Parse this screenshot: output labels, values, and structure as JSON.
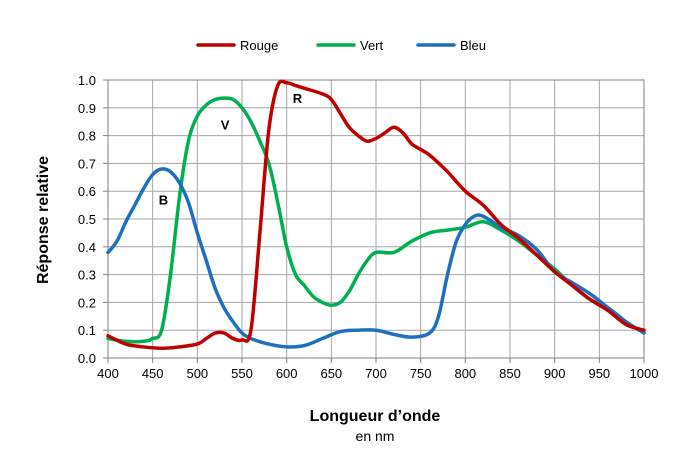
{
  "chart_data": {
    "type": "line",
    "xlabel": "Longueur d’onde",
    "xlabel_sub": "en nm",
    "ylabel": "Réponse relative",
    "xlim": [
      400,
      1000
    ],
    "ylim": [
      0,
      1
    ],
    "x_ticks": [
      "400",
      "450",
      "500",
      "550",
      "600",
      "650",
      "700",
      "750",
      "800",
      "850",
      "900",
      "950",
      "1000"
    ],
    "y_ticks": [
      "0.0",
      "0.1",
      "0.2",
      "0.3",
      "0.4",
      "0.5",
      "0.6",
      "0.7",
      "0.8",
      "0.9",
      "1.0"
    ],
    "grid": true,
    "legend_position": "top-center",
    "series": [
      {
        "name": "Rouge",
        "color": "#c00000",
        "points": [
          [
            400,
            0.08
          ],
          [
            420,
            0.05
          ],
          [
            440,
            0.04
          ],
          [
            460,
            0.035
          ],
          [
            480,
            0.04
          ],
          [
            500,
            0.05
          ],
          [
            510,
            0.07
          ],
          [
            520,
            0.09
          ],
          [
            530,
            0.09
          ],
          [
            540,
            0.07
          ],
          [
            550,
            0.065
          ],
          [
            560,
            0.1
          ],
          [
            570,
            0.45
          ],
          [
            580,
            0.82
          ],
          [
            590,
            0.98
          ],
          [
            600,
            0.99
          ],
          [
            610,
            0.98
          ],
          [
            620,
            0.97
          ],
          [
            640,
            0.95
          ],
          [
            650,
            0.93
          ],
          [
            660,
            0.88
          ],
          [
            670,
            0.83
          ],
          [
            680,
            0.8
          ],
          [
            690,
            0.78
          ],
          [
            700,
            0.79
          ],
          [
            710,
            0.81
          ],
          [
            720,
            0.83
          ],
          [
            730,
            0.81
          ],
          [
            740,
            0.77
          ],
          [
            750,
            0.75
          ],
          [
            760,
            0.73
          ],
          [
            780,
            0.67
          ],
          [
            800,
            0.6
          ],
          [
            820,
            0.55
          ],
          [
            840,
            0.48
          ],
          [
            860,
            0.43
          ],
          [
            880,
            0.37
          ],
          [
            900,
            0.31
          ],
          [
            920,
            0.26
          ],
          [
            940,
            0.21
          ],
          [
            960,
            0.17
          ],
          [
            980,
            0.12
          ],
          [
            1000,
            0.1
          ]
        ]
      },
      {
        "name": "Vert",
        "color": "#00b050",
        "points": [
          [
            400,
            0.07
          ],
          [
            420,
            0.06
          ],
          [
            440,
            0.06
          ],
          [
            450,
            0.07
          ],
          [
            460,
            0.1
          ],
          [
            470,
            0.3
          ],
          [
            480,
            0.58
          ],
          [
            490,
            0.78
          ],
          [
            500,
            0.87
          ],
          [
            510,
            0.91
          ],
          [
            520,
            0.93
          ],
          [
            530,
            0.935
          ],
          [
            540,
            0.93
          ],
          [
            550,
            0.9
          ],
          [
            560,
            0.85
          ],
          [
            570,
            0.78
          ],
          [
            580,
            0.7
          ],
          [
            590,
            0.56
          ],
          [
            600,
            0.4
          ],
          [
            610,
            0.3
          ],
          [
            620,
            0.26
          ],
          [
            630,
            0.22
          ],
          [
            640,
            0.2
          ],
          [
            650,
            0.19
          ],
          [
            660,
            0.2
          ],
          [
            670,
            0.24
          ],
          [
            680,
            0.3
          ],
          [
            690,
            0.35
          ],
          [
            700,
            0.38
          ],
          [
            720,
            0.38
          ],
          [
            740,
            0.42
          ],
          [
            760,
            0.45
          ],
          [
            780,
            0.46
          ],
          [
            800,
            0.47
          ],
          [
            820,
            0.49
          ],
          [
            840,
            0.46
          ],
          [
            860,
            0.42
          ],
          [
            880,
            0.37
          ],
          [
            900,
            0.32
          ],
          [
            920,
            0.26
          ],
          [
            940,
            0.21
          ],
          [
            960,
            0.18
          ],
          [
            980,
            0.13
          ],
          [
            1000,
            0.09
          ]
        ]
      },
      {
        "name": "Bleu",
        "color": "#1f6fbf",
        "points": [
          [
            400,
            0.38
          ],
          [
            410,
            0.42
          ],
          [
            420,
            0.49
          ],
          [
            430,
            0.55
          ],
          [
            440,
            0.61
          ],
          [
            450,
            0.66
          ],
          [
            460,
            0.68
          ],
          [
            470,
            0.67
          ],
          [
            480,
            0.63
          ],
          [
            490,
            0.56
          ],
          [
            500,
            0.45
          ],
          [
            510,
            0.35
          ],
          [
            520,
            0.25
          ],
          [
            530,
            0.18
          ],
          [
            540,
            0.13
          ],
          [
            550,
            0.09
          ],
          [
            560,
            0.07
          ],
          [
            580,
            0.05
          ],
          [
            600,
            0.04
          ],
          [
            620,
            0.045
          ],
          [
            640,
            0.07
          ],
          [
            660,
            0.095
          ],
          [
            680,
            0.1
          ],
          [
            700,
            0.1
          ],
          [
            720,
            0.085
          ],
          [
            740,
            0.075
          ],
          [
            760,
            0.09
          ],
          [
            770,
            0.15
          ],
          [
            780,
            0.3
          ],
          [
            790,
            0.42
          ],
          [
            800,
            0.48
          ],
          [
            810,
            0.51
          ],
          [
            820,
            0.51
          ],
          [
            840,
            0.47
          ],
          [
            860,
            0.44
          ],
          [
            880,
            0.39
          ],
          [
            900,
            0.31
          ],
          [
            920,
            0.27
          ],
          [
            940,
            0.23
          ],
          [
            960,
            0.18
          ],
          [
            980,
            0.13
          ],
          [
            1000,
            0.09
          ]
        ]
      }
    ],
    "annotations": [
      {
        "text": "R",
        "x": 612,
        "y": 0.935
      },
      {
        "text": "V",
        "x": 531,
        "y": 0.84
      },
      {
        "text": "B",
        "x": 462,
        "y": 0.57
      }
    ]
  }
}
